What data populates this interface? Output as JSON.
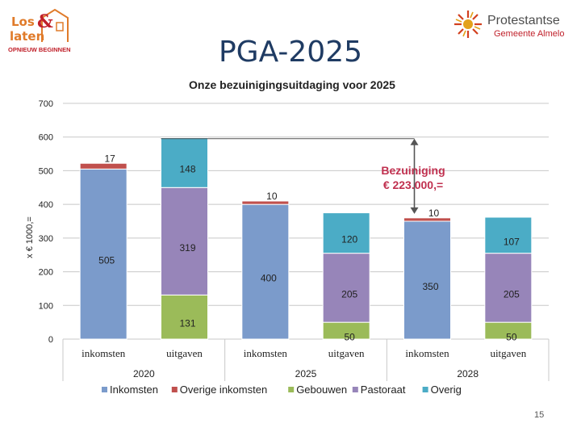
{
  "slide": {
    "title": "PGA-2025",
    "page_number": "15"
  },
  "logos": {
    "left": {
      "line1": "Los",
      "line2": "laten",
      "ampersand": "&",
      "tagline": "OPNIEUW BEGINNEN"
    },
    "right": {
      "name": "Protestantse",
      "sub": "Gemeente Almelo"
    }
  },
  "colors": {
    "inkomsten": "#7b9bcb",
    "overige_inkomsten": "#c0504d",
    "gebouwen": "#9bbb59",
    "pastoraat": "#9785b9",
    "overig": "#4bacc6",
    "annotation": "#c0304f",
    "title_blue": "#1f3b63"
  },
  "chart_data": {
    "type": "bar",
    "stacked": true,
    "title": "Onze bezuinigingsuitdaging voor 2025",
    "ylabel": "x € 1000,=",
    "ylim": [
      0,
      700
    ],
    "yticks": [
      0,
      100,
      200,
      300,
      400,
      500,
      600,
      700
    ],
    "grid": true,
    "categories": [
      "inkomsten",
      "uitgaven",
      "inkomsten",
      "uitgaven",
      "inkomsten",
      "uitgaven"
    ],
    "groups": [
      {
        "label": "2020",
        "categories": [
          0,
          1
        ]
      },
      {
        "label": "2025",
        "categories": [
          2,
          3
        ]
      },
      {
        "label": "2028",
        "categories": [
          4,
          5
        ]
      }
    ],
    "series": [
      {
        "name": "Inkomsten",
        "color_key": "inkomsten",
        "values": [
          505,
          0,
          400,
          0,
          350,
          0
        ]
      },
      {
        "name": "Overige inkomsten",
        "color_key": "overige_inkomsten",
        "values": [
          17,
          0,
          10,
          0,
          10,
          0
        ]
      },
      {
        "name": "Gebouwen",
        "color_key": "gebouwen",
        "values": [
          0,
          131,
          0,
          50,
          0,
          50
        ]
      },
      {
        "name": "Pastoraat",
        "color_key": "pastoraat",
        "values": [
          0,
          319,
          0,
          205,
          0,
          205
        ]
      },
      {
        "name": "Overig",
        "color_key": "overig",
        "values": [
          0,
          148,
          0,
          120,
          0,
          107
        ]
      }
    ],
    "annotation": {
      "line1": "Bezuiniging",
      "line2": "€ 223.000,=",
      "from": 372,
      "to": 595,
      "category_index": 4
    },
    "legend_position": "bottom"
  }
}
